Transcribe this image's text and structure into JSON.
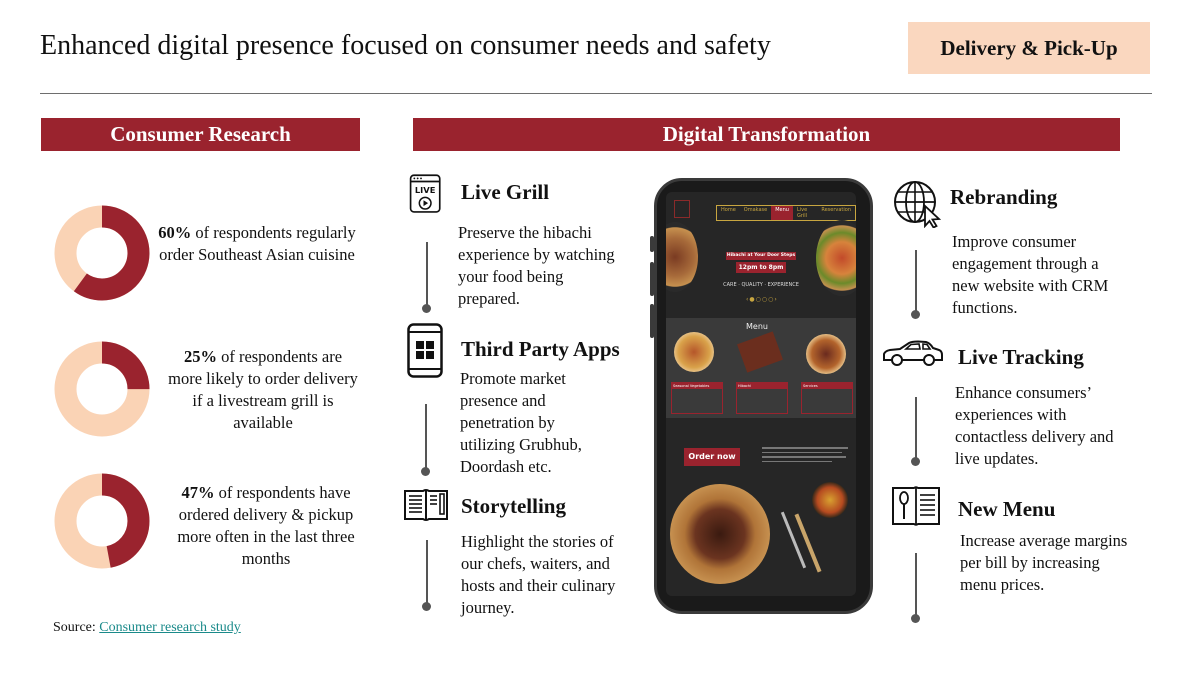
{
  "header": {
    "title": "Enhanced digital presence focused on consumer needs and safety",
    "tag": "Delivery & Pick-Up"
  },
  "consumer_research": {
    "banner": "Consumer Research",
    "colors": {
      "primary": "#9a232e",
      "secondary": "#fad3b5"
    },
    "stats": [
      {
        "percent": "60%",
        "text": " of respondents regularly order Southeast Asian cuisine",
        "value": 60
      },
      {
        "percent": "25%",
        "text": " of respondents are more likely to order delivery if a livestream grill is available",
        "value": 25
      },
      {
        "percent": "47%",
        "text": " of respondents have ordered delivery & pickup more often in the last three months",
        "value": 47
      }
    ],
    "source_label": "Source: ",
    "source_link": "Consumer research study"
  },
  "digital": {
    "banner": "Digital Transformation",
    "left": [
      {
        "icon": "live-stream-icon",
        "title": "Live Grill",
        "text": "Preserve the hibachi experience by watching your food being prepared."
      },
      {
        "icon": "smartphone-apps-icon",
        "title": "Third Party Apps",
        "text": "Promote market presence and penetration by utilizing Grubhub, Doordash etc."
      },
      {
        "icon": "book-icon",
        "title": "Storytelling",
        "text": "Highlight the stories of our chefs, waiters, and hosts and their culinary journey."
      }
    ],
    "right": [
      {
        "icon": "globe-cursor-icon",
        "title": "Rebranding",
        "text": "Improve consumer engagement through a new website with CRM functions."
      },
      {
        "icon": "car-icon",
        "title": "Live Tracking",
        "text": "Enhance consumers’ experiences with contactless delivery and live updates."
      },
      {
        "icon": "menu-spoon-icon",
        "title": "New Menu",
        "text": "Increase average margins per bill by increasing menu prices."
      }
    ]
  },
  "phone_site": {
    "nav": [
      "Home",
      "Omakase",
      "Menu",
      "Live Grill",
      "Reservation"
    ],
    "hero_banner": "Hibachi at Your Door Steps",
    "hero_hours": "12pm to 8pm",
    "hero_tagline": "CARE · QUALITY · EXPERIENCE",
    "menu_title": "Menu",
    "menu_cols": [
      "Seasonal Vegetables",
      "Hibachi",
      "Services"
    ],
    "order_button": "Order now"
  }
}
